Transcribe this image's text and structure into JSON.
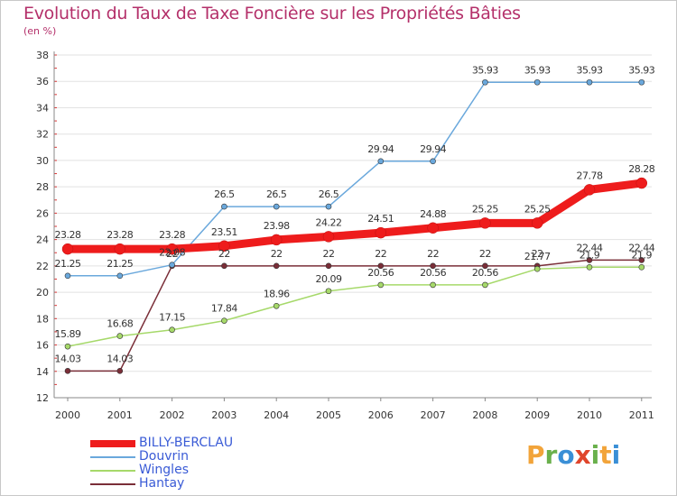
{
  "title": "Evolution du Taux de Taxe Foncière sur les Propriétés Bâties",
  "unit_label": "(en %)",
  "chart_data": {
    "type": "line",
    "title": "Evolution du Taux de Taxe Foncière sur les Propriétés Bâties",
    "ylabel": "(en %)",
    "xlabel": "",
    "ylim": [
      12,
      38
    ],
    "yticks": [
      "12",
      "14",
      "16",
      "18",
      "20",
      "22",
      "24",
      "26",
      "28",
      "30",
      "32",
      "34",
      "36",
      "38"
    ],
    "categories": [
      "2000",
      "2001",
      "2002",
      "2003",
      "2004",
      "2005",
      "2006",
      "2007",
      "2008",
      "2009",
      "2010",
      "2011"
    ],
    "series": [
      {
        "name": "BILLY-BERCLAU",
        "color": "#ee1c1c",
        "values": [
          23.28,
          23.28,
          23.28,
          23.51,
          23.98,
          24.22,
          24.51,
          24.88,
          25.25,
          25.25,
          27.78,
          28.28
        ],
        "labels": [
          "23.28",
          "23.28",
          "23.28",
          "23.51",
          "23.98",
          "24.22",
          "24.51",
          "24.88",
          "25.25",
          "25.25",
          "27.78",
          "28.28"
        ]
      },
      {
        "name": "Douvrin",
        "color": "#6aa8dc",
        "values": [
          21.25,
          21.25,
          22.08,
          26.5,
          26.5,
          26.5,
          29.94,
          29.94,
          35.93,
          35.93,
          35.93,
          35.93
        ],
        "labels": [
          "21.25",
          "21.25",
          "22.08",
          "26.5",
          "26.5",
          "26.5",
          "29.94",
          "29.94",
          "35.93",
          "35.93",
          "35.93",
          "35.93"
        ]
      },
      {
        "name": "Wingles",
        "color": "#a6d96a",
        "values": [
          15.89,
          16.68,
          17.15,
          17.84,
          18.96,
          20.09,
          20.56,
          20.56,
          20.56,
          21.77,
          21.9,
          21.9
        ],
        "labels": [
          "15.89",
          "16.68",
          "17.15",
          "17.84",
          "18.96",
          "20.09",
          "20.56",
          "20.56",
          "20.56",
          "21.77",
          "21.9",
          "21.9"
        ]
      },
      {
        "name": "Hantay",
        "color": "#7a2e38",
        "values": [
          14.03,
          14.03,
          22,
          22,
          22,
          22,
          22,
          22,
          22,
          22,
          22.44,
          22.44
        ],
        "labels": [
          "14.03",
          "14.03",
          "22",
          "22",
          "22",
          "22",
          "22",
          "22",
          "22",
          "22",
          "22.44",
          "22.44"
        ]
      }
    ],
    "legend_position": "bottom-left"
  },
  "logo": {
    "text": "Proxiti",
    "letters": [
      {
        "char": "P",
        "color": "#f2a43a"
      },
      {
        "char": "r",
        "color": "#6ab04c"
      },
      {
        "char": "o",
        "color": "#3a8fd6"
      },
      {
        "char": "x",
        "color": "#e0452b"
      },
      {
        "char": "i",
        "color": "#6ab04c"
      },
      {
        "char": "t",
        "color": "#f2a43a"
      },
      {
        "char": "i",
        "color": "#3a8fd6"
      }
    ]
  }
}
